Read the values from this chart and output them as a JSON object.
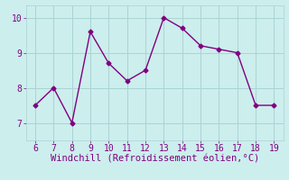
{
  "x": [
    6,
    7,
    8,
    9,
    10,
    11,
    12,
    13,
    14,
    15,
    16,
    17,
    18,
    19
  ],
  "y": [
    7.5,
    8.0,
    7.0,
    9.6,
    8.7,
    8.2,
    8.5,
    10.0,
    9.7,
    9.2,
    9.1,
    9.0,
    7.5,
    7.5
  ],
  "xlim": [
    5.5,
    19.5
  ],
  "ylim": [
    6.5,
    10.35
  ],
  "xticks": [
    6,
    7,
    8,
    9,
    10,
    11,
    12,
    13,
    14,
    15,
    16,
    17,
    18,
    19
  ],
  "yticks": [
    7,
    8,
    9,
    10
  ],
  "xlabel": "Windchill (Refroidissement éolien,°C)",
  "line_color": "#800080",
  "bg_color": "#cceeed",
  "grid_color": "#aad4d4",
  "tick_label_color": "#800080",
  "xlabel_color": "#800080",
  "marker": "D",
  "markersize": 2.5,
  "linewidth": 1.0,
  "xlabel_fontsize": 7.5,
  "tick_fontsize": 7
}
